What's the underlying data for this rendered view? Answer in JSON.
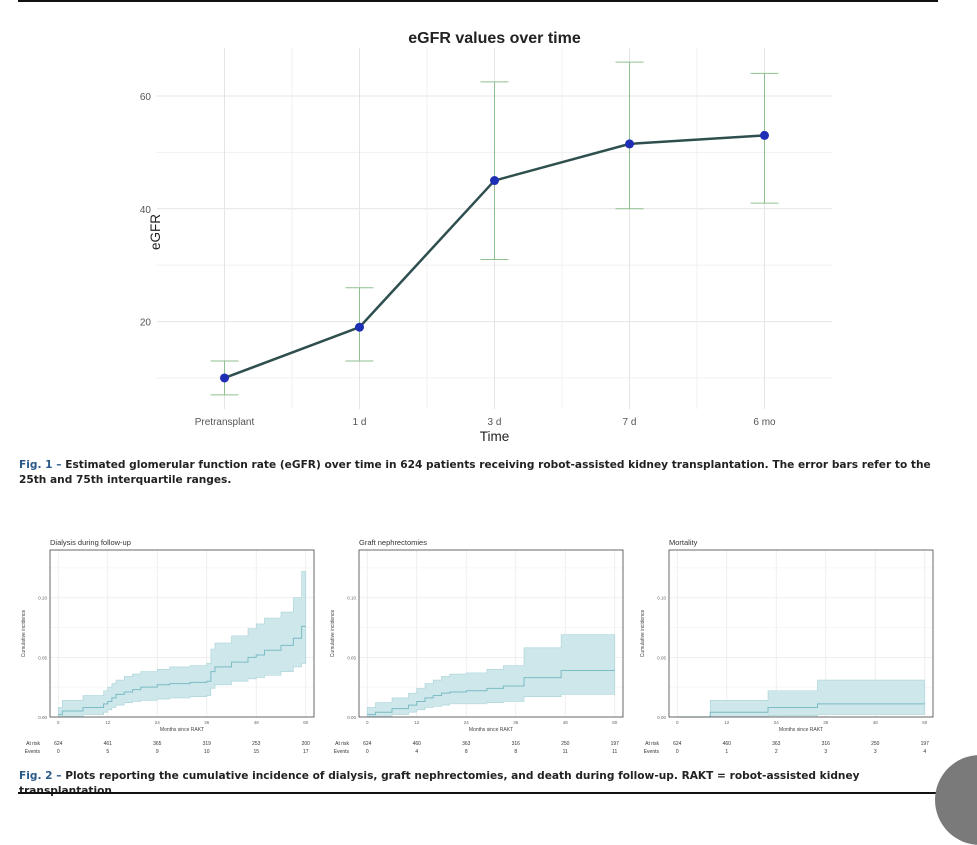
{
  "fig1": {
    "chart_data": {
      "type": "line",
      "title": "eGFR values over time",
      "xlabel": "Time",
      "ylabel": "eGFR",
      "categories": [
        "Pretransplant",
        "1 d",
        "3 d",
        "7 d",
        "6 mo"
      ],
      "series": [
        {
          "name": "eGFR",
          "values": [
            10,
            19,
            45,
            51.5,
            53
          ]
        }
      ],
      "error_bars": {
        "lower": [
          7,
          13,
          31,
          40,
          41
        ],
        "upper": [
          13,
          26,
          62.5,
          66,
          64
        ]
      },
      "yticks": [
        20,
        40,
        60
      ],
      "ylim": [
        4.5,
        68.5
      ],
      "colors": {
        "line": "#2f4f4f",
        "point": "#1f2fb5",
        "errorbar": "#8fbf8f"
      }
    },
    "caption_label": "Fig. 1 –",
    "caption_text": "Estimated glomerular function rate (eGFR) over time in 624 patients receiving robot-assisted kidney transplantation. The error bars refer to the 25th and 75th interquartile ranges."
  },
  "fig2": {
    "chart_data": [
      {
        "type": "area",
        "title": "Dialysis during follow-up",
        "xlabel": "Months since RAKT",
        "ylabel": "Cumulative incidence",
        "xticks": [
          0,
          12,
          24,
          36,
          48,
          60
        ],
        "yticks": [
          0.0,
          0.05,
          0.1
        ],
        "ytick_labels": [
          "0.00",
          "0.05",
          "0.10"
        ],
        "xlim": [
          -2,
          62
        ],
        "ylim": [
          0,
          0.14
        ],
        "step_x": [
          0,
          1,
          6,
          11,
          12,
          13,
          14,
          16,
          18,
          20,
          24,
          27,
          30,
          32,
          36,
          37,
          38,
          42,
          46,
          48,
          50,
          54,
          57,
          59
        ],
        "estimate": [
          0.002,
          0.005,
          0.008,
          0.011,
          0.013,
          0.016,
          0.019,
          0.021,
          0.023,
          0.025,
          0.027,
          0.028,
          0.028,
          0.029,
          0.03,
          0.038,
          0.042,
          0.046,
          0.05,
          0.052,
          0.056,
          0.06,
          0.066,
          0.076
        ],
        "lower": [
          0,
          0,
          0.002,
          0.004,
          0.006,
          0.008,
          0.01,
          0.012,
          0.013,
          0.014,
          0.015,
          0.016,
          0.016,
          0.017,
          0.018,
          0.024,
          0.027,
          0.03,
          0.032,
          0.033,
          0.035,
          0.038,
          0.042,
          0.045
        ],
        "upper": [
          0.008,
          0.014,
          0.018,
          0.022,
          0.025,
          0.028,
          0.031,
          0.034,
          0.036,
          0.038,
          0.04,
          0.042,
          0.042,
          0.043,
          0.045,
          0.057,
          0.062,
          0.068,
          0.074,
          0.078,
          0.083,
          0.088,
          0.1,
          0.122
        ],
        "at_risk_label": "At risk",
        "events_label": "Events",
        "at_risk": [
          "624",
          "461",
          "365",
          "319",
          "253",
          "200"
        ],
        "events": [
          "0",
          "5",
          "9",
          "10",
          "15",
          "17"
        ]
      },
      {
        "type": "area",
        "title": "Graft nephrectomies",
        "xlabel": "Months since RAKT",
        "ylabel": "Cumulative incidence",
        "xticks": [
          0,
          12,
          24,
          36,
          48,
          60
        ],
        "yticks": [
          0.0,
          0.05,
          0.1
        ],
        "ytick_labels": [
          "0.00",
          "0.05",
          "0.10"
        ],
        "xlim": [
          -2,
          62
        ],
        "ylim": [
          0,
          0.14
        ],
        "step_x": [
          0,
          2,
          6,
          10,
          12,
          14,
          16,
          18,
          20,
          24,
          29,
          33,
          38,
          47
        ],
        "estimate": [
          0.002,
          0.004,
          0.007,
          0.01,
          0.013,
          0.016,
          0.018,
          0.02,
          0.021,
          0.022,
          0.024,
          0.026,
          0.033,
          0.039
        ],
        "lower": [
          0,
          0,
          0.002,
          0.004,
          0.006,
          0.008,
          0.009,
          0.01,
          0.011,
          0.011,
          0.012,
          0.013,
          0.017,
          0.019
        ],
        "upper": [
          0.008,
          0.012,
          0.016,
          0.02,
          0.024,
          0.028,
          0.031,
          0.034,
          0.036,
          0.037,
          0.04,
          0.043,
          0.058,
          0.069
        ],
        "at_risk_label": "At risk",
        "events_label": "Events",
        "at_risk": [
          "624",
          "460",
          "363",
          "316",
          "250",
          "197"
        ],
        "events": [
          "0",
          "4",
          "8",
          "8",
          "11",
          "11"
        ]
      },
      {
        "type": "area",
        "title": "Mortality",
        "xlabel": "Months since RAKT",
        "ylabel": "Cumulative incidence",
        "xticks": [
          0,
          12,
          24,
          36,
          48,
          60
        ],
        "yticks": [
          0.0,
          0.05,
          0.1
        ],
        "ytick_labels": [
          "0.00",
          "0.05",
          "0.10"
        ],
        "xlim": [
          -2,
          62
        ],
        "ylim": [
          0,
          0.14
        ],
        "step_x": [
          0,
          8,
          22,
          34
        ],
        "estimate": [
          0,
          0.004,
          0.008,
          0.011
        ],
        "lower": [
          0,
          0,
          0.001,
          0.002
        ],
        "upper": [
          0,
          0.014,
          0.022,
          0.031
        ],
        "at_risk_label": "At risk",
        "events_label": "Events",
        "at_risk": [
          "624",
          "460",
          "363",
          "316",
          "250",
          "197"
        ],
        "events": [
          "0",
          "1",
          "2",
          "3",
          "3",
          "4"
        ]
      }
    ],
    "caption_label": "Fig. 2 –",
    "caption_text": "Plots reporting the cumulative incidence of dialysis, graft nephrectomies, and death during follow-up. RAKT = robot-assisted kidney transplantation.",
    "colors": {
      "band": "#cde7ea",
      "band_stroke": "#a9d3d8",
      "line": "#7bbcc5"
    }
  }
}
